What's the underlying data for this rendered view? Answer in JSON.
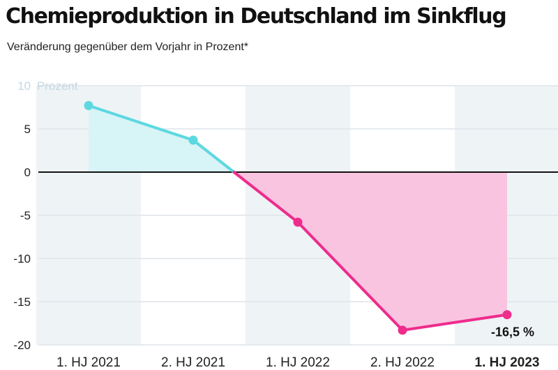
{
  "title": "Chemieproduktion in Deutschland im Sinkflug",
  "subtitle": "Veränderung gegenüber dem Vorjahr in Prozent*",
  "colors": {
    "positive_line": "#5dd8e0",
    "positive_fill": "#d7f4f6",
    "negative_line": "#ee2c8c",
    "negative_fill": "#f9c4e0",
    "band": "#eef3f6",
    "zero_line": "#111111"
  },
  "chart_data": {
    "type": "area",
    "categories": [
      "1. HJ 2021",
      "2. HJ 2021",
      "1. HJ 2022",
      "2. HJ 2022",
      "1. HJ 2023"
    ],
    "values": [
      7.7,
      3.7,
      -5.8,
      -18.3,
      -16.5
    ],
    "ylim": [
      -20,
      10
    ],
    "yticks": [
      10,
      5,
      0,
      -5,
      -10,
      -15,
      -20
    ],
    "yunit_label": "Prozent",
    "highlight_category": "1. HJ 2023",
    "data_label": "-16,5 %",
    "grid": true
  }
}
